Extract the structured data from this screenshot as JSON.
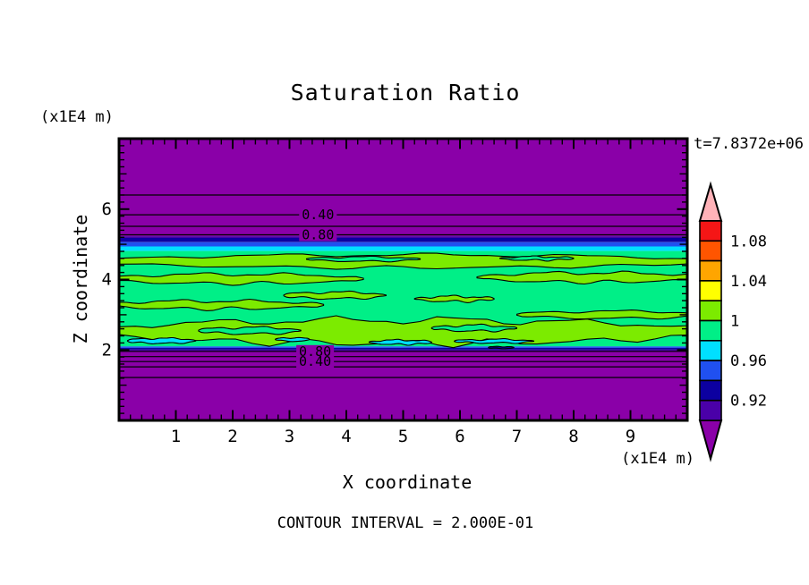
{
  "chart_data": {
    "type": "heatmap",
    "title": "Saturation Ratio",
    "xlabel": "X coordinate",
    "ylabel": "Z coordinate",
    "x_unit_label": "(x1E4 m)",
    "y_unit_label": "(x1E4 m)",
    "time_annotation": "t=7.8372e+06",
    "footer_annotation": "CONTOUR INTERVAL = 2.000E-01",
    "contour_interval": 0.2,
    "xlim": [
      0,
      10
    ],
    "ylim": [
      0,
      8
    ],
    "xticks": [
      1,
      2,
      3,
      4,
      5,
      6,
      7,
      8,
      9
    ],
    "yticks": [
      2,
      4,
      6
    ],
    "minor_tick_step": 0.2,
    "grid": false,
    "palette": {
      "purple": "#8A00A8",
      "dark_violet": "#4A00A8",
      "navy": "#0C00A0",
      "blue": "#2050F0",
      "cyan": "#00DFFF",
      "spring_green": "#00EF87",
      "chartreuse": "#7CEB00",
      "yellow": "#FFFF00",
      "orange": "#FFA500",
      "orange_red": "#FF5500",
      "red": "#F51616",
      "pink": "#FFB2B8",
      "line": "#000000"
    },
    "colorbar": {
      "position": "right",
      "value_top": 1.1,
      "value_bottom": 0.9,
      "segment_step": 0.02,
      "over_color": "pink",
      "under_color": "purple",
      "segment_colors": [
        "red",
        "orange_red",
        "orange",
        "yellow",
        "chartreuse",
        "spring_green",
        "cyan",
        "blue",
        "navy",
        "dark_violet"
      ],
      "labels": [
        {
          "text": "1.08",
          "value": 1.08
        },
        {
          "text": "1.04",
          "value": 1.04
        },
        {
          "text": "1",
          "value": 1.0
        },
        {
          "text": "0.96",
          "value": 0.96
        },
        {
          "text": "0.92",
          "value": 0.92
        }
      ]
    },
    "bands": [
      {
        "z": [
          5.23,
          8.0
        ],
        "color": "purple"
      },
      {
        "z": [
          5.18,
          5.23
        ],
        "color": "dark_violet"
      },
      {
        "z": [
          5.06,
          5.18
        ],
        "color": "navy"
      },
      {
        "z": [
          4.94,
          5.06
        ],
        "color": "blue"
      },
      {
        "z": [
          4.81,
          4.94
        ],
        "color": "cyan"
      },
      {
        "z": [
          2.1,
          4.81
        ],
        "color": "spring_green"
      },
      {
        "z": [
          2.06,
          2.1
        ],
        "color": "blue"
      },
      {
        "z": [
          2.01,
          2.06
        ],
        "color": "navy"
      },
      {
        "z": [
          1.97,
          2.01
        ],
        "color": "dark_violet"
      },
      {
        "z": [
          0.0,
          1.97
        ],
        "color": "purple"
      }
    ],
    "contour_lines": [
      {
        "z": 6.4
      },
      {
        "z": 5.84,
        "label": "0.40",
        "label_x": 3.5
      },
      {
        "z": 5.51
      },
      {
        "z": 5.27,
        "label": "0.80",
        "label_x": 3.5
      },
      {
        "z": 1.96,
        "label": "0.80",
        "label_x": 3.45
      },
      {
        "z": 1.81
      },
      {
        "z": 1.67,
        "label": "0.40",
        "label_x": 3.45
      },
      {
        "z": 1.52
      },
      {
        "z": 1.22
      }
    ],
    "patches": [
      {
        "x": [
          -0.3,
          10.3
        ],
        "z": 4.52,
        "half": 0.18,
        "wave": 0.04,
        "waves": 4,
        "phase": 0.5,
        "color": "chartreuse"
      },
      {
        "x": [
          3.3,
          5.3
        ],
        "z": 4.58,
        "half": 0.06,
        "wave": 0.02,
        "waves": 2,
        "phase": 1.2,
        "color": "spring_green"
      },
      {
        "x": [
          6.7,
          8.0
        ],
        "z": 4.6,
        "half": 0.05,
        "wave": 0.02,
        "waves": 2,
        "phase": 2.6,
        "color": "spring_green"
      },
      {
        "x": [
          -0.3,
          4.3
        ],
        "z": 4.02,
        "half": 0.13,
        "wave": 0.04,
        "waves": 3,
        "phase": 0.9,
        "color": "chartreuse"
      },
      {
        "x": [
          6.3,
          10.3
        ],
        "z": 4.06,
        "half": 0.13,
        "wave": 0.04,
        "waves": 3,
        "phase": 1.8,
        "color": "chartreuse"
      },
      {
        "x": [
          2.9,
          4.7
        ],
        "z": 3.55,
        "half": 0.09,
        "wave": 0.03,
        "waves": 2,
        "phase": 0.3,
        "color": "chartreuse"
      },
      {
        "x": [
          5.2,
          6.6
        ],
        "z": 3.45,
        "half": 0.07,
        "wave": 0.03,
        "waves": 2,
        "phase": 2.2,
        "color": "chartreuse"
      },
      {
        "x": [
          -0.3,
          3.6
        ],
        "z": 3.28,
        "half": 0.11,
        "wave": 0.04,
        "waves": 3,
        "phase": 1.5,
        "color": "chartreuse"
      },
      {
        "x": [
          7.0,
          10.3
        ],
        "z": 3.0,
        "half": 0.1,
        "wave": 0.03,
        "waves": 2,
        "phase": 0.7,
        "color": "chartreuse"
      },
      {
        "x": [
          -0.3,
          10.3
        ],
        "z": 2.52,
        "half": 0.33,
        "wave": 0.09,
        "waves": 5,
        "phase": 2.0,
        "color": "chartreuse"
      },
      {
        "x": [
          1.4,
          3.2
        ],
        "z": 2.55,
        "half": 0.09,
        "wave": 0.03,
        "waves": 2,
        "phase": 0.4,
        "color": "spring_green"
      },
      {
        "x": [
          5.5,
          7.0
        ],
        "z": 2.62,
        "half": 0.08,
        "wave": 0.03,
        "waves": 2,
        "phase": 1.1,
        "color": "spring_green"
      },
      {
        "x": [
          0.15,
          1.35
        ],
        "z": 2.26,
        "half": 0.07,
        "wave": 0.02,
        "waves": 2,
        "phase": 0.2,
        "color": "cyan"
      },
      {
        "x": [
          2.75,
          3.35
        ],
        "z": 2.3,
        "half": 0.05,
        "wave": 0.015,
        "waves": 1,
        "phase": 1.9,
        "color": "cyan"
      },
      {
        "x": [
          4.4,
          5.5
        ],
        "z": 2.22,
        "half": 0.06,
        "wave": 0.02,
        "waves": 2,
        "phase": 2.8,
        "color": "cyan"
      },
      {
        "x": [
          5.9,
          7.3
        ],
        "z": 2.25,
        "half": 0.05,
        "wave": 0.02,
        "waves": 2,
        "phase": 0.6,
        "color": "cyan"
      },
      {
        "x": [
          6.5,
          6.95
        ],
        "z": 2.07,
        "half": 0.03,
        "wave": 0.01,
        "waves": 1,
        "phase": 1.0,
        "color": "navy"
      }
    ]
  }
}
